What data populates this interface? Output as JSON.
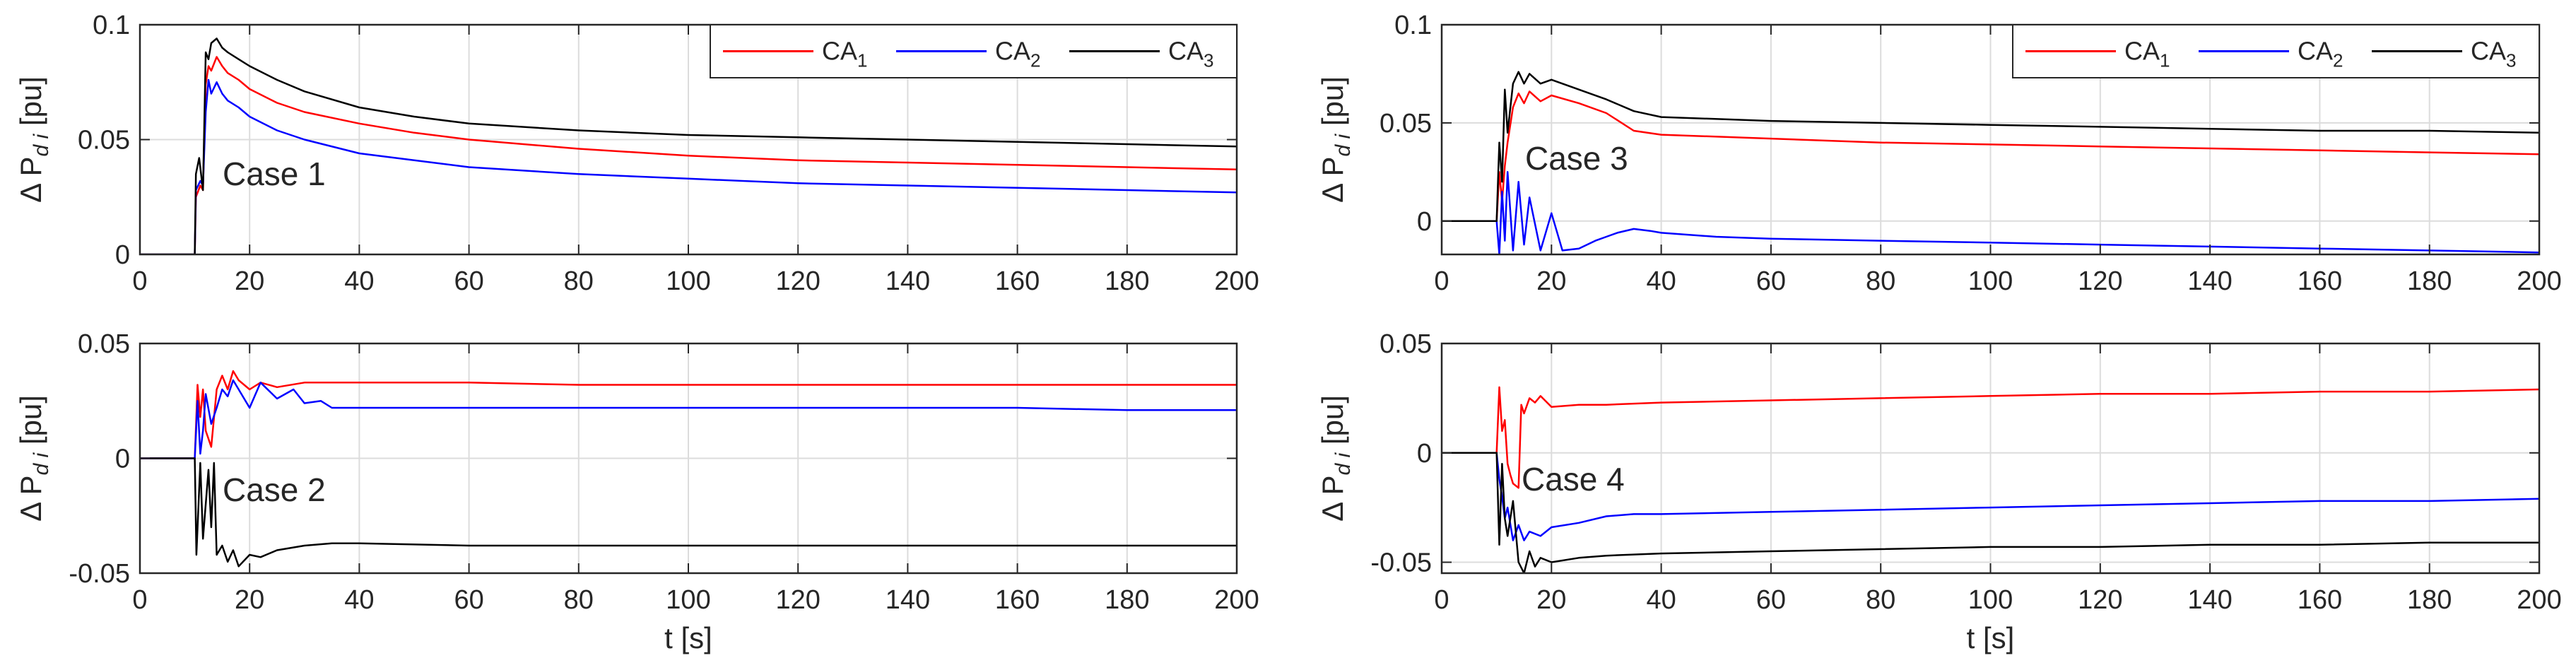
{
  "figure_title": "",
  "chart_data": [
    {
      "type": "line",
      "panel": "top-left",
      "annotation": "Case 1",
      "title": "",
      "xlabel": "",
      "ylabel": "Δ P",
      "ylabel_sub": "d i",
      "ylabel_unit": "[pu]",
      "xlim": [
        0,
        200
      ],
      "ylim": [
        0,
        0.1
      ],
      "xticks": [
        0,
        20,
        40,
        60,
        80,
        100,
        120,
        140,
        160,
        180,
        200
      ],
      "xtick_labels": [
        "0",
        "20",
        "40",
        "60",
        "80",
        "100",
        "120",
        "140",
        "160",
        "180",
        "200"
      ],
      "yticks": [
        0,
        0.05,
        0.1
      ],
      "ytick_labels": [
        "0",
        "0.05",
        "0.1"
      ],
      "grid": true,
      "legend": {
        "placement": "top-right",
        "entries": [
          {
            "base": "CA",
            "sub": "1",
            "color": "#ff0000"
          },
          {
            "base": "CA",
            "sub": "2",
            "color": "#0000ff"
          },
          {
            "base": "CA",
            "sub": "3",
            "color": "#000000"
          }
        ]
      },
      "series": [
        {
          "name": "CA1",
          "color": "#ff0000",
          "x": [
            0,
            10,
            10.2,
            11,
            11.5,
            12,
            12.5,
            13,
            14,
            15,
            16,
            18,
            20,
            25,
            30,
            40,
            50,
            60,
            80,
            100,
            120,
            140,
            160,
            180,
            200
          ],
          "y": [
            0,
            0,
            0.025,
            0.03,
            0.028,
            0.074,
            0.082,
            0.08,
            0.086,
            0.082,
            0.079,
            0.076,
            0.072,
            0.066,
            0.062,
            0.057,
            0.053,
            0.05,
            0.046,
            0.043,
            0.041,
            0.04,
            0.039,
            0.038,
            0.037
          ]
        },
        {
          "name": "CA2",
          "color": "#0000ff",
          "x": [
            0,
            10,
            10.2,
            11,
            11.5,
            12,
            12.5,
            13,
            14,
            15,
            16,
            18,
            20,
            25,
            30,
            40,
            50,
            60,
            80,
            100,
            120,
            140,
            160,
            180,
            200
          ],
          "y": [
            0,
            0,
            0.028,
            0.032,
            0.03,
            0.062,
            0.076,
            0.07,
            0.075,
            0.07,
            0.067,
            0.064,
            0.06,
            0.054,
            0.05,
            0.044,
            0.041,
            0.038,
            0.035,
            0.033,
            0.031,
            0.03,
            0.029,
            0.028,
            0.027
          ]
        },
        {
          "name": "CA3",
          "color": "#000000",
          "x": [
            0,
            10,
            10.2,
            10.8,
            11.5,
            12,
            12.5,
            13,
            14,
            15,
            16,
            18,
            20,
            25,
            30,
            40,
            50,
            60,
            80,
            100,
            120,
            140,
            160,
            180,
            200
          ],
          "y": [
            0,
            0,
            0.035,
            0.042,
            0.028,
            0.088,
            0.085,
            0.092,
            0.094,
            0.09,
            0.088,
            0.085,
            0.082,
            0.076,
            0.071,
            0.064,
            0.06,
            0.057,
            0.054,
            0.052,
            0.051,
            0.05,
            0.049,
            0.048,
            0.047
          ]
        }
      ]
    },
    {
      "type": "line",
      "panel": "top-right",
      "annotation": "Case 3",
      "title": "",
      "xlabel": "",
      "ylabel": "Δ P",
      "ylabel_sub": "d i",
      "ylabel_unit": "[pu]",
      "xlim": [
        0,
        200
      ],
      "ylim": [
        -0.017,
        0.1
      ],
      "xticks": [
        0,
        20,
        40,
        60,
        80,
        100,
        120,
        140,
        160,
        180,
        200
      ],
      "xtick_labels": [
        "0",
        "20",
        "40",
        "60",
        "80",
        "100",
        "120",
        "140",
        "160",
        "180",
        "200"
      ],
      "yticks": [
        0,
        0.05,
        0.1
      ],
      "ytick_labels": [
        "0",
        "0.05",
        "0.1"
      ],
      "grid": true,
      "legend": {
        "placement": "top-right",
        "entries": [
          {
            "base": "CA",
            "sub": "1",
            "color": "#ff0000"
          },
          {
            "base": "CA",
            "sub": "2",
            "color": "#0000ff"
          },
          {
            "base": "CA",
            "sub": "3",
            "color": "#000000"
          }
        ]
      },
      "series": [
        {
          "name": "CA1",
          "color": "#ff0000",
          "x": [
            0,
            10,
            10.5,
            11,
            11.5,
            12,
            13,
            14,
            15,
            16,
            18,
            20,
            25,
            30,
            35,
            40,
            60,
            80,
            100,
            120,
            140,
            160,
            180,
            200
          ],
          "y": [
            0,
            0,
            0.025,
            0.01,
            0.028,
            0.04,
            0.058,
            0.065,
            0.06,
            0.066,
            0.061,
            0.064,
            0.06,
            0.055,
            0.046,
            0.044,
            0.042,
            0.04,
            0.039,
            0.038,
            0.037,
            0.036,
            0.035,
            0.034
          ]
        },
        {
          "name": "CA2",
          "color": "#0000ff",
          "x": [
            0,
            10,
            10.5,
            11,
            11.5,
            12,
            13,
            14,
            15,
            16,
            18,
            20,
            22,
            25,
            28,
            30,
            32,
            35,
            38,
            40,
            50,
            60,
            80,
            100,
            120,
            140,
            160,
            180,
            200
          ],
          "y": [
            0,
            0,
            -0.017,
            0.015,
            -0.01,
            0.025,
            -0.015,
            0.02,
            -0.012,
            0.012,
            -0.015,
            0.004,
            -0.015,
            -0.014,
            -0.01,
            -0.008,
            -0.006,
            -0.004,
            -0.005,
            -0.006,
            -0.008,
            -0.009,
            -0.01,
            -0.011,
            -0.012,
            -0.013,
            -0.014,
            -0.015,
            -0.016
          ]
        },
        {
          "name": "CA3",
          "color": "#000000",
          "x": [
            0,
            10,
            10.5,
            11,
            11.5,
            12,
            13,
            14,
            15,
            16,
            18,
            20,
            25,
            30,
            35,
            40,
            60,
            80,
            100,
            120,
            140,
            160,
            180,
            200
          ],
          "y": [
            0,
            0,
            0.04,
            0.02,
            0.067,
            0.045,
            0.07,
            0.076,
            0.07,
            0.075,
            0.07,
            0.072,
            0.067,
            0.062,
            0.056,
            0.053,
            0.051,
            0.05,
            0.049,
            0.048,
            0.047,
            0.046,
            0.046,
            0.045
          ]
        }
      ]
    },
    {
      "type": "line",
      "panel": "bottom-left",
      "annotation": "Case 2",
      "title": "",
      "xlabel": "t [s]",
      "ylabel": "Δ P",
      "ylabel_sub": "d i",
      "ylabel_unit": "[pu]",
      "xlim": [
        0,
        200
      ],
      "ylim": [
        -0.05,
        0.05
      ],
      "xticks": [
        0,
        20,
        40,
        60,
        80,
        100,
        120,
        140,
        160,
        180,
        200
      ],
      "xtick_labels": [
        "0",
        "20",
        "40",
        "60",
        "80",
        "100",
        "120",
        "140",
        "160",
        "180",
        "200"
      ],
      "yticks": [
        -0.05,
        0,
        0.05
      ],
      "ytick_labels": [
        "-0.05",
        "0",
        "0.05"
      ],
      "grid": true,
      "series": [
        {
          "name": "CA1",
          "color": "#ff0000",
          "x": [
            0,
            10,
            10.5,
            11,
            11.5,
            12,
            13,
            14,
            15,
            16,
            17,
            18,
            20,
            22,
            25,
            30,
            35,
            40,
            60,
            80,
            100,
            120,
            140,
            160,
            180,
            200
          ],
          "y": [
            0,
            0,
            0.032,
            0.018,
            0.03,
            0.012,
            0.005,
            0.03,
            0.036,
            0.03,
            0.038,
            0.034,
            0.03,
            0.033,
            0.031,
            0.033,
            0.033,
            0.033,
            0.033,
            0.032,
            0.032,
            0.032,
            0.032,
            0.032,
            0.032,
            0.032
          ]
        },
        {
          "name": "CA2",
          "color": "#0000ff",
          "x": [
            0,
            10,
            10.5,
            11,
            11.5,
            12,
            13,
            14,
            15,
            16,
            17,
            18,
            20,
            22,
            25,
            28,
            30,
            33,
            35,
            40,
            60,
            80,
            100,
            120,
            140,
            160,
            180,
            200
          ],
          "y": [
            0,
            0,
            0.025,
            0.002,
            0.012,
            0.028,
            0.015,
            0.022,
            0.03,
            0.027,
            0.034,
            0.03,
            0.022,
            0.033,
            0.026,
            0.03,
            0.024,
            0.025,
            0.022,
            0.022,
            0.022,
            0.022,
            0.022,
            0.022,
            0.022,
            0.022,
            0.021,
            0.021
          ]
        },
        {
          "name": "CA3",
          "color": "#000000",
          "x": [
            0,
            10,
            10.3,
            11,
            11.5,
            12,
            12.5,
            13,
            13.5,
            14,
            15,
            16,
            17,
            18,
            20,
            22,
            25,
            30,
            35,
            40,
            60,
            80,
            100,
            120,
            140,
            160,
            180,
            200
          ],
          "y": [
            0,
            0,
            -0.042,
            -0.002,
            -0.035,
            -0.02,
            -0.005,
            -0.03,
            -0.002,
            -0.042,
            -0.038,
            -0.045,
            -0.04,
            -0.047,
            -0.042,
            -0.043,
            -0.04,
            -0.038,
            -0.037,
            -0.037,
            -0.038,
            -0.038,
            -0.038,
            -0.038,
            -0.038,
            -0.038,
            -0.038,
            -0.038
          ]
        }
      ]
    },
    {
      "type": "line",
      "panel": "bottom-right",
      "annotation": "Case 4",
      "title": "",
      "xlabel": "t [s]",
      "ylabel": "Δ P",
      "ylabel_sub": "d i",
      "ylabel_unit": "[pu]",
      "xlim": [
        0,
        200
      ],
      "ylim": [
        -0.055,
        0.05
      ],
      "xticks": [
        0,
        20,
        40,
        60,
        80,
        100,
        120,
        140,
        160,
        180,
        200
      ],
      "xtick_labels": [
        "0",
        "20",
        "40",
        "60",
        "80",
        "100",
        "120",
        "140",
        "160",
        "180",
        "200"
      ],
      "yticks": [
        -0.05,
        0,
        0.05
      ],
      "ytick_labels": [
        "-0.05",
        "0",
        "0.05"
      ],
      "grid": true,
      "series": [
        {
          "name": "CA1",
          "color": "#ff0000",
          "x": [
            0,
            10,
            10.5,
            11,
            11.5,
            12,
            12.5,
            13,
            14,
            14.5,
            15,
            16,
            17,
            18,
            20,
            25,
            30,
            40,
            60,
            80,
            100,
            120,
            140,
            160,
            180,
            200
          ],
          "y": [
            0,
            0,
            0.03,
            0.01,
            0.015,
            -0.005,
            -0.01,
            -0.014,
            -0.016,
            0.022,
            0.018,
            0.025,
            0.023,
            0.026,
            0.021,
            0.022,
            0.022,
            0.023,
            0.024,
            0.025,
            0.026,
            0.027,
            0.027,
            0.028,
            0.028,
            0.029
          ]
        },
        {
          "name": "CA2",
          "color": "#0000ff",
          "x": [
            0,
            10,
            10.5,
            11,
            11.5,
            12,
            13,
            14,
            15,
            16,
            18,
            20,
            25,
            30,
            35,
            40,
            60,
            80,
            100,
            120,
            140,
            160,
            180,
            200
          ],
          "y": [
            0,
            0,
            -0.012,
            -0.02,
            -0.03,
            -0.025,
            -0.04,
            -0.033,
            -0.04,
            -0.036,
            -0.038,
            -0.034,
            -0.032,
            -0.029,
            -0.028,
            -0.028,
            -0.027,
            -0.026,
            -0.025,
            -0.024,
            -0.023,
            -0.022,
            -0.022,
            -0.021
          ]
        },
        {
          "name": "CA3",
          "color": "#000000",
          "x": [
            0,
            10,
            10.5,
            11,
            11.5,
            12,
            13,
            14,
            15,
            16,
            17,
            18,
            20,
            25,
            30,
            40,
            60,
            80,
            100,
            120,
            140,
            160,
            180,
            200
          ],
          "y": [
            0,
            0,
            -0.042,
            -0.005,
            -0.03,
            -0.038,
            -0.022,
            -0.05,
            -0.055,
            -0.045,
            -0.052,
            -0.048,
            -0.05,
            -0.048,
            -0.047,
            -0.046,
            -0.045,
            -0.044,
            -0.043,
            -0.043,
            -0.042,
            -0.042,
            -0.041,
            -0.041
          ]
        }
      ]
    }
  ]
}
